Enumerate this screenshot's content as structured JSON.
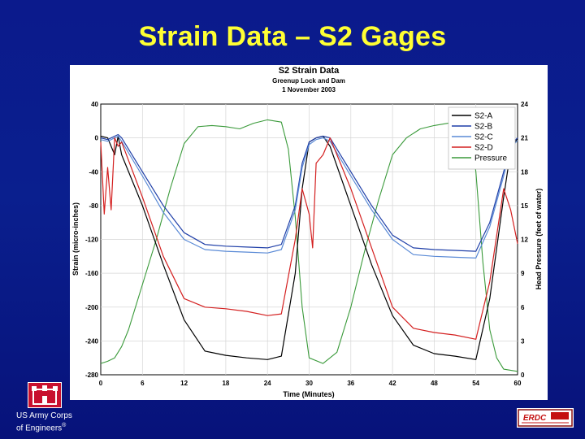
{
  "slide": {
    "title": "Strain Data – S2 Gages",
    "org_line1": "US Army Corps",
    "org_line2": "of Engineers",
    "org_mark": "®",
    "partner_logo_text": "ERDC"
  },
  "chart_data": {
    "type": "line",
    "title": "S2 Strain Data",
    "subtitle_line1": "Greenup Lock and Dam",
    "subtitle_line2": "1 November 2003",
    "xlabel": "Time (Minutes)",
    "ylabel": "Strain (micro-inches)",
    "y2label": "Head Pressure (feet of water)",
    "xlim": [
      0,
      60
    ],
    "ylim": [
      -280,
      40
    ],
    "y2lim": [
      0,
      24
    ],
    "xticks": [
      "0",
      "6",
      "12",
      "18",
      "24",
      "30",
      "36",
      "42",
      "48",
      "54",
      "60"
    ],
    "yticks": [
      "40",
      "0",
      "-40",
      "-80",
      "-120",
      "-160",
      "-200",
      "-240",
      "-280"
    ],
    "y2ticks": [
      "24",
      "21",
      "18",
      "15",
      "12",
      "9",
      "6",
      "3",
      "0"
    ],
    "legend_position": "top-right",
    "colors": {
      "S2-A": "#000000",
      "S2-B": "#1f3fa8",
      "S2-C": "#5a8ad6",
      "S2-D": "#d42020",
      "Pressure": "#3a9a3a"
    },
    "series": [
      {
        "name": "S2-A",
        "axis": "left",
        "x": [
          0,
          1,
          2,
          2.5,
          3,
          6,
          9,
          12,
          15,
          18,
          21,
          24,
          26,
          28,
          29,
          30,
          31,
          32,
          33,
          36,
          39,
          42,
          45,
          48,
          51,
          54,
          56,
          58,
          59,
          60
        ],
        "y": [
          2,
          0,
          -20,
          2,
          -20,
          -80,
          -150,
          -215,
          -252,
          -257,
          -260,
          -262,
          -258,
          -160,
          -60,
          -5,
          0,
          2,
          -10,
          -80,
          -150,
          -210,
          -245,
          -255,
          -258,
          -262,
          -190,
          -70,
          -15,
          0
        ]
      },
      {
        "name": "S2-B",
        "axis": "left",
        "x": [
          0,
          1,
          2,
          2.5,
          3,
          6,
          9,
          12,
          15,
          18,
          21,
          24,
          26,
          28,
          29,
          30,
          31,
          32,
          33,
          36,
          39,
          42,
          45,
          48,
          51,
          54,
          56,
          58,
          59,
          60
        ],
        "y": [
          0,
          -2,
          2,
          4,
          0,
          -40,
          -80,
          -112,
          -126,
          -128,
          -129,
          -130,
          -126,
          -80,
          -30,
          -5,
          0,
          2,
          0,
          -40,
          -80,
          -115,
          -130,
          -132,
          -133,
          -134,
          -100,
          -40,
          -8,
          0
        ]
      },
      {
        "name": "S2-C",
        "axis": "left",
        "x": [
          0,
          1,
          2,
          2.5,
          3,
          6,
          9,
          12,
          15,
          18,
          21,
          24,
          26,
          28,
          29,
          30,
          31,
          32,
          33,
          36,
          39,
          42,
          45,
          48,
          51,
          54,
          56,
          58,
          59,
          60
        ],
        "y": [
          -2,
          -4,
          0,
          2,
          -4,
          -45,
          -88,
          -120,
          -132,
          -134,
          -135,
          -136,
          -132,
          -85,
          -35,
          -8,
          -2,
          0,
          -4,
          -45,
          -85,
          -120,
          -138,
          -140,
          -141,
          -142,
          -105,
          -45,
          -12,
          -3
        ]
      },
      {
        "name": "S2-D",
        "axis": "left",
        "x": [
          0,
          0.5,
          1,
          1.5,
          2,
          2.5,
          3,
          6,
          9,
          12,
          15,
          18,
          21,
          24,
          26,
          28,
          29,
          30,
          30.5,
          31,
          32,
          33,
          36,
          39,
          42,
          45,
          48,
          51,
          54,
          56,
          58,
          59,
          60
        ],
        "y": [
          -5,
          -90,
          -35,
          -85,
          0,
          -10,
          -5,
          -70,
          -140,
          -190,
          -200,
          -202,
          -205,
          -210,
          -208,
          -120,
          -60,
          -90,
          -130,
          -30,
          -20,
          0,
          -60,
          -130,
          -200,
          -225,
          -230,
          -233,
          -238,
          -170,
          -60,
          -85,
          -125
        ]
      },
      {
        "name": "Pressure",
        "axis": "right",
        "x": [
          0,
          1,
          2,
          3,
          4,
          6,
          8,
          10,
          12,
          14,
          16,
          18,
          20,
          22,
          24,
          26,
          27,
          28,
          29,
          30,
          32,
          34,
          36,
          38,
          40,
          42,
          44,
          46,
          48,
          50,
          52,
          53,
          54,
          55,
          56,
          57,
          58,
          60
        ],
        "y": [
          1,
          1.2,
          1.5,
          2.5,
          4,
          8,
          12,
          16.5,
          20.5,
          22,
          22.1,
          22,
          21.8,
          22.3,
          22.6,
          22.4,
          20,
          14,
          6,
          1.5,
          1,
          2,
          6,
          11,
          15.5,
          19.5,
          21,
          21.8,
          22.1,
          22.3,
          22.5,
          22.5,
          18,
          10,
          4,
          1.5,
          0.5,
          0.3
        ]
      }
    ]
  }
}
